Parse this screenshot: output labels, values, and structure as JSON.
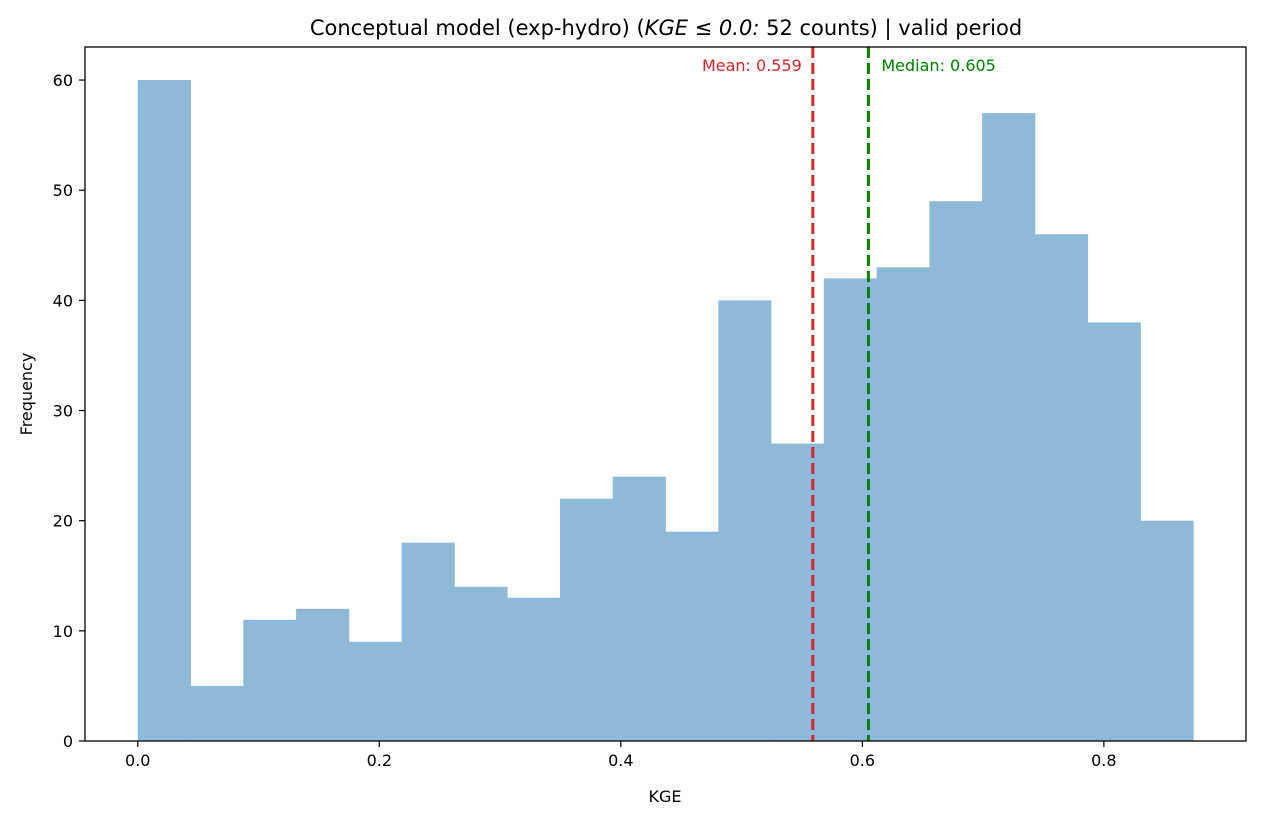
{
  "chart_data": {
    "type": "bar",
    "title": "Conceptual model (exp-hydro) (",
    "title_math": "KGE ≤ 0.0:",
    "title_tail": " 52 counts) | valid period",
    "xlabel": "KGE",
    "ylabel": "Frequency",
    "xlim": [
      -0.0437,
      0.9177
    ],
    "ylim": [
      0,
      63
    ],
    "xticks": [
      0.0,
      0.2,
      0.4,
      0.6,
      0.8
    ],
    "xtick_labels": [
      "0.0",
      "0.2",
      "0.4",
      "0.6",
      "0.8"
    ],
    "yticks": [
      0,
      10,
      20,
      30,
      40,
      50,
      60
    ],
    "ytick_labels": [
      "0",
      "10",
      "20",
      "30",
      "40",
      "50",
      "60"
    ],
    "bin_edges": [
      0.0,
      0.0437,
      0.0874,
      0.1311,
      0.1748,
      0.2185,
      0.2622,
      0.3059,
      0.3496,
      0.3933,
      0.437,
      0.4807,
      0.5244,
      0.5681,
      0.6118,
      0.6555,
      0.6992,
      0.7429,
      0.7866,
      0.8303,
      0.874
    ],
    "values": [
      60,
      5,
      11,
      12,
      9,
      18,
      14,
      13,
      22,
      24,
      19,
      40,
      27,
      42,
      43,
      49,
      57,
      46,
      38,
      20
    ],
    "bar_color": "#8fb9d8",
    "grid": false,
    "lines": [
      {
        "x": 0.559,
        "label": "Mean: 0.559",
        "color": "#d62728"
      },
      {
        "x": 0.605,
        "label": "Median: 0.605",
        "color": "#008000"
      }
    ]
  }
}
